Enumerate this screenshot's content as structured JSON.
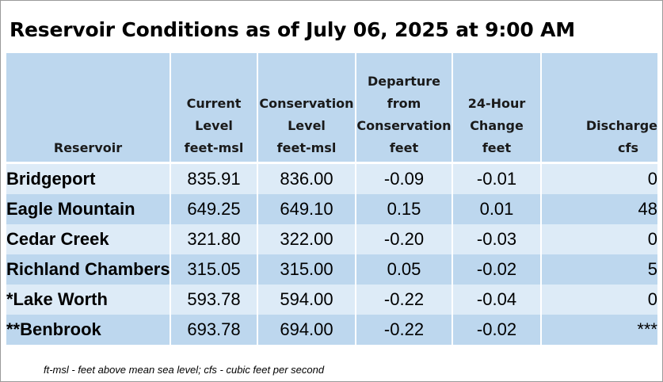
{
  "title": "Reservoir Conditions as of July 06, 2025 at 9:00 AM",
  "columns": [
    {
      "lines": [
        "Reservoir"
      ]
    },
    {
      "lines": [
        "Current",
        "Level",
        "feet-msl"
      ]
    },
    {
      "lines": [
        "Conservation",
        "Level",
        "feet-msl"
      ]
    },
    {
      "lines": [
        "Departure",
        "from",
        "Conservation",
        "feet"
      ]
    },
    {
      "lines": [
        "24-Hour",
        "Change",
        "feet"
      ]
    },
    {
      "lines": [
        "Discharge",
        "cfs"
      ]
    }
  ],
  "rows": [
    {
      "reservoir": "Bridgeport",
      "current": "835.91",
      "conservation": "836.00",
      "departure": "-0.09",
      "change": "-0.01",
      "discharge": "0"
    },
    {
      "reservoir": "Eagle Mountain",
      "current": "649.25",
      "conservation": "649.10",
      "departure": "0.15",
      "change": "0.01",
      "discharge": "48"
    },
    {
      "reservoir": "Cedar Creek",
      "current": "321.80",
      "conservation": "322.00",
      "departure": "-0.20",
      "change": "-0.03",
      "discharge": "0"
    },
    {
      "reservoir": "Richland Chambers",
      "current": "315.05",
      "conservation": "315.00",
      "departure": "0.05",
      "change": "-0.02",
      "discharge": "5"
    },
    {
      "reservoir": "*Lake Worth",
      "current": "593.78",
      "conservation": "594.00",
      "departure": "-0.22",
      "change": "-0.04",
      "discharge": "0"
    },
    {
      "reservoir": "**Benbrook",
      "current": "693.78",
      "conservation": "694.00",
      "departure": "-0.22",
      "change": "-0.02",
      "discharge": "***"
    }
  ],
  "footnote": "ft-msl - feet above mean sea level; cfs - cubic feet per second",
  "colors": {
    "header_bg": "#bdd7ee",
    "row_light": "#ddebf7",
    "row_dark": "#bdd7ee"
  }
}
